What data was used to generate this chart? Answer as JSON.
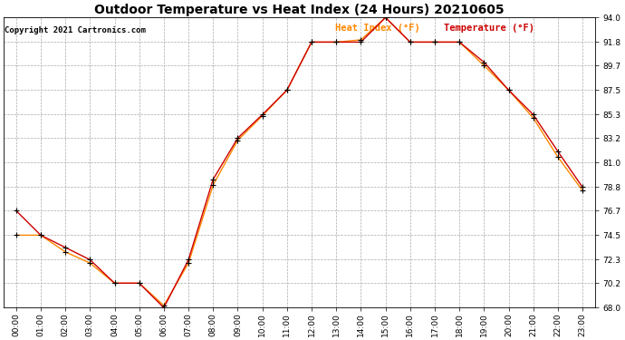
{
  "title": "Outdoor Temperature vs Heat Index (24 Hours) 20210605",
  "copyright": "Copyright 2021 Cartronics.com",
  "legend_heat": "Heat Index (°F)",
  "legend_temp": "Temperature (°F)",
  "hours": [
    "00:00",
    "01:00",
    "02:00",
    "03:00",
    "04:00",
    "05:00",
    "06:00",
    "07:00",
    "08:00",
    "09:00",
    "10:00",
    "11:00",
    "12:00",
    "13:00",
    "14:00",
    "15:00",
    "16:00",
    "17:00",
    "18:00",
    "19:00",
    "20:00",
    "21:00",
    "22:00",
    "23:00"
  ],
  "temperature": [
    76.7,
    74.5,
    73.4,
    72.3,
    70.2,
    70.2,
    68.0,
    72.3,
    79.5,
    83.2,
    85.3,
    87.5,
    91.8,
    91.8,
    91.8,
    94.0,
    91.8,
    91.8,
    91.8,
    90.0,
    87.5,
    85.3,
    82.0,
    78.8
  ],
  "heat_index": [
    74.5,
    74.5,
    73.0,
    72.0,
    70.2,
    70.2,
    68.2,
    72.0,
    79.0,
    83.0,
    85.2,
    87.5,
    91.8,
    91.8,
    92.0,
    94.0,
    91.8,
    91.8,
    91.8,
    89.7,
    87.5,
    85.0,
    81.5,
    78.5
  ],
  "ylim_min": 68.0,
  "ylim_max": 94.0,
  "yticks": [
    68.0,
    70.2,
    72.3,
    74.5,
    76.7,
    78.8,
    81.0,
    83.2,
    85.3,
    87.5,
    89.7,
    91.8,
    94.0
  ],
  "temp_color": "#cc0000",
  "heat_color": "#ff8800",
  "grid_color": "#aaaaaa",
  "bg_color": "#ffffff",
  "title_fontsize": 10,
  "tick_fontsize": 6.5,
  "copyright_fontsize": 6.5,
  "legend_fontsize": 7.5
}
